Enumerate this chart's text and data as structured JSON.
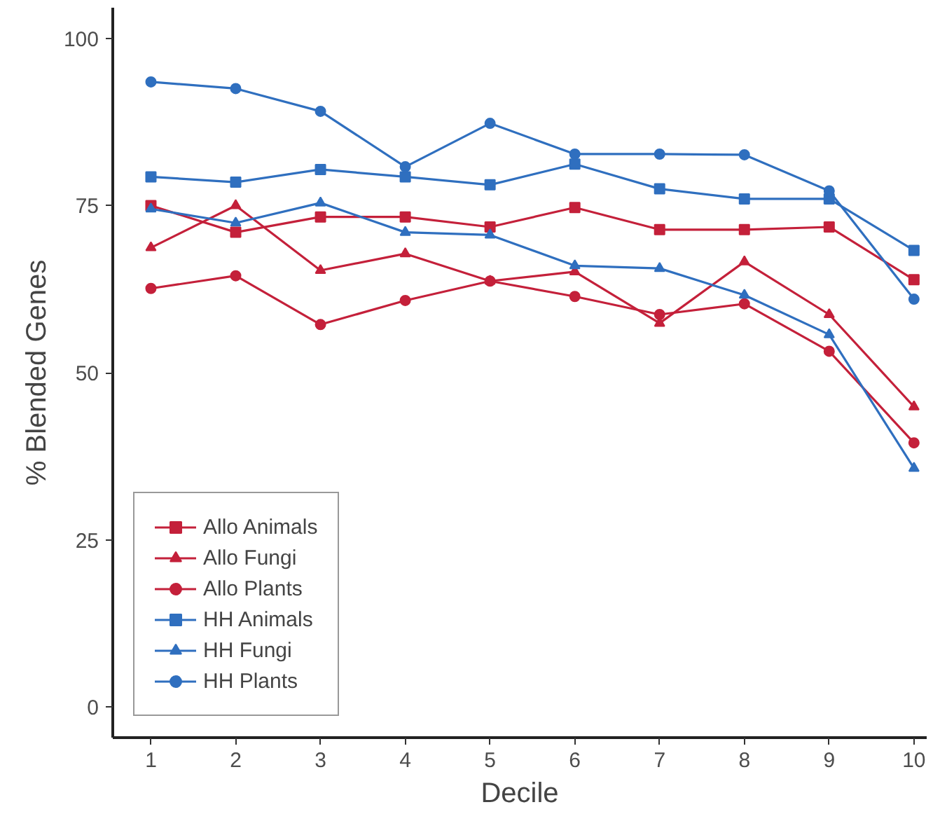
{
  "chart_data": {
    "type": "line",
    "xlabel": "Decile",
    "ylabel": "% Blended Genes",
    "x": [
      1,
      2,
      3,
      4,
      5,
      6,
      7,
      8,
      9,
      10
    ],
    "xlim": [
      0.55,
      10.15
    ],
    "xticks": [
      1,
      2,
      3,
      4,
      5,
      6,
      7,
      8,
      9,
      10
    ],
    "ylim": [
      -4.6,
      104.6
    ],
    "yticks": [
      0,
      25,
      50,
      75,
      100
    ],
    "grid": false,
    "legend": "bottom left",
    "series": [
      {
        "name": "Allo Animals",
        "color": "#c4203a",
        "marker": "square",
        "values": [
          75.0,
          71.0,
          73.3,
          73.3,
          71.8,
          74.7,
          71.4,
          71.4,
          71.8,
          63.9
        ]
      },
      {
        "name": "Allo Fungi",
        "color": "#c4203a",
        "marker": "triangle",
        "values": [
          68.7,
          75.0,
          65.3,
          67.8,
          63.7,
          65.1,
          57.4,
          66.6,
          58.7,
          44.9
        ]
      },
      {
        "name": "Allo Plants",
        "color": "#c4203a",
        "marker": "circle",
        "values": [
          62.6,
          64.5,
          57.2,
          60.8,
          63.7,
          61.4,
          58.7,
          60.3,
          53.2,
          39.5
        ]
      },
      {
        "name": "HH Animals",
        "color": "#2f6fbf",
        "marker": "square",
        "values": [
          79.3,
          78.5,
          80.4,
          79.3,
          78.1,
          81.2,
          77.5,
          76.0,
          76.0,
          68.3
        ]
      },
      {
        "name": "HH Fungi",
        "color": "#2f6fbf",
        "marker": "triangle",
        "values": [
          74.5,
          72.4,
          75.4,
          71.0,
          70.6,
          66.0,
          65.6,
          61.6,
          55.7,
          35.7
        ]
      },
      {
        "name": "HH Plants",
        "color": "#2f6fbf",
        "marker": "circle",
        "values": [
          93.5,
          92.5,
          89.1,
          80.8,
          87.3,
          82.7,
          82.7,
          82.6,
          77.2,
          61.0
        ]
      }
    ]
  }
}
